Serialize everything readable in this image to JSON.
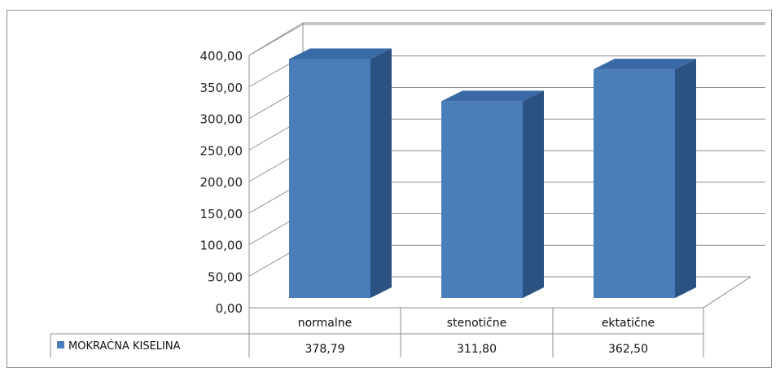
{
  "chart_data": {
    "type": "bar",
    "categories": [
      "normalne",
      "stenotične",
      "ektatične"
    ],
    "series": [
      {
        "name": "MOKRAĆNA KISELINA",
        "values": [
          378.79,
          311.8,
          362.5
        ],
        "color": "#4a7ebb"
      }
    ],
    "value_labels": [
      "378,79",
      "311,80",
      "362,50"
    ],
    "y_ticks": [
      "0,00",
      "50,00",
      "100,00",
      "150,00",
      "200,00",
      "250,00",
      "300,00",
      "350,00",
      "400,00"
    ],
    "ylim": [
      0,
      400
    ],
    "grid": true,
    "style": "3d-column",
    "legend_placement": "data-table"
  }
}
